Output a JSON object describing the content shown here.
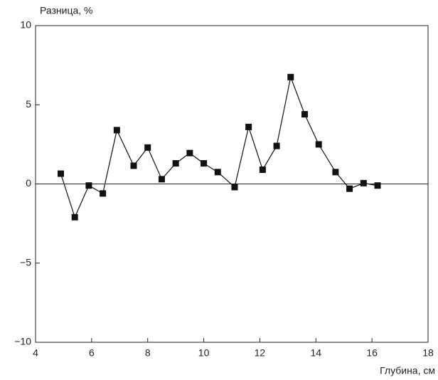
{
  "chart_data": {
    "type": "line",
    "ylabel": "Разница, %",
    "xlabel": "Глубина, см",
    "series": [
      {
        "color": "#111111",
        "x": [
          4.9,
          5.4,
          5.9,
          6.4,
          6.9,
          7.5,
          8.0,
          8.5,
          9.0,
          9.5,
          10.0,
          10.5,
          11.1,
          11.6,
          12.1,
          12.6,
          13.1,
          13.6,
          14.1,
          14.7,
          15.2,
          15.7,
          16.2
        ],
        "values": [
          0.65,
          -2.1,
          -0.1,
          -0.6,
          3.4,
          1.15,
          2.3,
          0.3,
          1.3,
          1.95,
          1.3,
          0.75,
          -0.2,
          3.6,
          0.9,
          2.4,
          6.75,
          4.4,
          2.5,
          0.75,
          -0.3,
          0.05,
          -0.1
        ]
      }
    ],
    "xlim": [
      4,
      18
    ],
    "xticks": [
      4,
      6,
      8,
      10,
      12,
      14,
      16,
      18
    ],
    "ylim": [
      -10,
      10
    ],
    "yticks": [
      {
        "value": -10,
        "label": "−10"
      },
      {
        "value": -5,
        "label": "−5"
      },
      0,
      5,
      10
    ],
    "zero_line": true,
    "marker": "square"
  }
}
